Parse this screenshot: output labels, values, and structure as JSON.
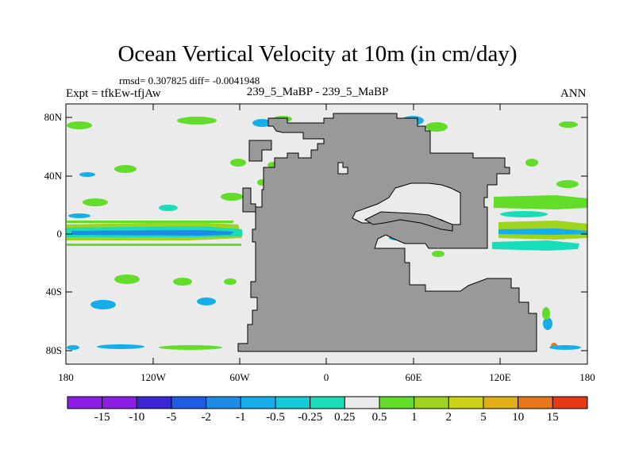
{
  "title": "Ocean Vertical Velocity at 10m (in cm/day)",
  "stats": "rmsd= 0.307825 diff= -0.0041948",
  "expt": "Expt = tfkEw-tfjAw",
  "case": "239_5_MaBP - 239_5_MaBP",
  "season": "ANN",
  "y_ticks": [
    "80N",
    "40N",
    "0",
    "40S",
    "80S"
  ],
  "x_ticks": [
    "180",
    "120W",
    "60W",
    "0",
    "60E",
    "120E",
    "180"
  ],
  "colorbar": {
    "labels": [
      "-15",
      "-10",
      "-5",
      "-2",
      "-1",
      "-0.5",
      "-0.25",
      "0.25",
      "0.5",
      "1",
      "2",
      "5",
      "10",
      "15"
    ],
    "colors": [
      "#8e1ee6",
      "#3a26d6",
      "#1e5ce6",
      "#1e8ce6",
      "#16aeea",
      "#15c9d8",
      "#19ddb8",
      "#ebebeb",
      "#63dc2a",
      "#9ed31e",
      "#cdd316",
      "#e2b016",
      "#e8761a",
      "#e63a16"
    ]
  },
  "map_colors": {
    "background": "#ebebeb",
    "land": "#999999",
    "blue": "#1e8ce6",
    "cyan": "#16aeea",
    "teal": "#19ddb8",
    "green": "#63dc2a",
    "yellow_green": "#9ed31e",
    "yellow": "#cdd316",
    "orange": "#e8761a"
  }
}
